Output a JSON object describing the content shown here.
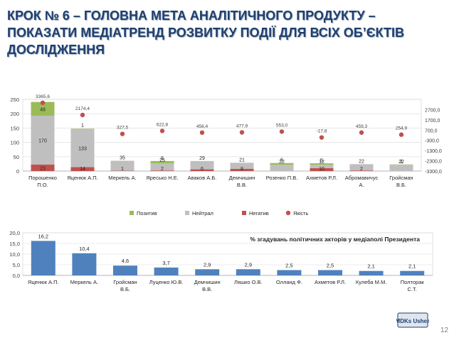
{
  "title_lines": [
    "КРОК № 6 – ГОЛОВНА МЕТА АНАЛІТИЧНОГО ПРОДУКТУ –",
    "ПОКАЗАТИ МЕДІАТРЕНД РОЗВИТКУ ПОДІЇ ДЛЯ ВСІХ ОБ’ЄКТІВ",
    "ДОСЛІДЖЕННЯ"
  ],
  "page_number": "12",
  "logo_text": "MDKs Ushea",
  "colors": {
    "title": "#1f3f6e",
    "positive": "#9bbb59",
    "neutral": "#bfbfbf",
    "negative": "#c0504d",
    "index_marker": "#c0504d",
    "bar2": "#4f81bd"
  },
  "chart_data": [
    {
      "type": "bar",
      "stacked": true,
      "categories": [
        "Порошенко П.О.",
        "Яценюк А.П.",
        "Меркель А.",
        "Яресько Н.Е.",
        "Аваков А.Б.",
        "Демчишин В.В.",
        "Розенко П.В.",
        "Ахметов Р.Л.",
        "Абромавичус А.",
        "Гройсман В.Б."
      ],
      "series": [
        {
          "name": "Негатив",
          "values": [
            23,
            14,
            1,
            2,
            6,
            8,
            0,
            10,
            2,
            0
          ]
        },
        {
          "name": "Нейтрал",
          "values": [
            170,
            133,
            35,
            25,
            29,
            21,
            22,
            12,
            22,
            22
          ]
        },
        {
          "name": "Позитив",
          "values": [
            48,
            1,
            0,
            8,
            0,
            0,
            6,
            5,
            0,
            1
          ]
        }
      ],
      "bar_labels": {
        "negative": [
          "23",
          "14",
          "1",
          "2",
          "6",
          "8",
          "",
          "10",
          "2",
          ""
        ],
        "neutral": [
          "170",
          "133",
          "35",
          "25",
          "29",
          "21",
          "22",
          "12",
          "22",
          "22"
        ],
        "positive": [
          "48",
          "1",
          "",
          "8",
          "",
          "",
          "6",
          "5",
          "",
          "1"
        ]
      },
      "secondary_series": {
        "name": "Якість",
        "values": [
          3365.6,
          2174.4,
          327.5,
          622.8,
          456.4,
          477.9,
          553.0,
          -17.8,
          459.3,
          254.9
        ],
        "labels": [
          "3365,6",
          "2174,4",
          "327,5",
          "622,8",
          "456,4",
          "477,9",
          "553,0",
          "-17,8",
          "459,3",
          "254,9"
        ]
      },
      "ylim": [
        0,
        250
      ],
      "yticks": [
        "0",
        "50",
        "100",
        "150",
        "200",
        "250"
      ],
      "y2lim": [
        -3300,
        3700
      ],
      "y2ticks": [
        "-3300,0",
        "-2300,0",
        "-1300,0",
        "-300,0",
        "700,0",
        "1700,0",
        "2700,0"
      ],
      "legend": [
        "Позитив",
        "Нейтрал",
        "Негатив",
        "Якість"
      ],
      "legend_position": "bottom"
    },
    {
      "type": "bar",
      "title": "% згадувань політичних акторів у медіаполі Президента",
      "categories": [
        "Яценюк А.П.",
        "Меркель А.",
        "Гройсман В.Б.",
        "Луценко Ю.В.",
        "Демчишин В.В.",
        "Ляшко О.В.",
        "Олланд Ф.",
        "Ахметов Р.Л.",
        "Кулеба М.М.",
        "Полторак С.Т."
      ],
      "values": [
        16.2,
        10.4,
        4.6,
        3.7,
        2.9,
        2.9,
        2.5,
        2.5,
        2.1,
        2.1
      ],
      "value_labels": [
        "16,2",
        "10,4",
        "4,6",
        "3,7",
        "2,9",
        "2,9",
        "2,5",
        "2,5",
        "2,1",
        "2,1"
      ],
      "ylim": [
        0,
        20
      ],
      "yticks": [
        "0,0",
        "5,0",
        "10,0",
        "15,0",
        "20,0"
      ]
    }
  ]
}
